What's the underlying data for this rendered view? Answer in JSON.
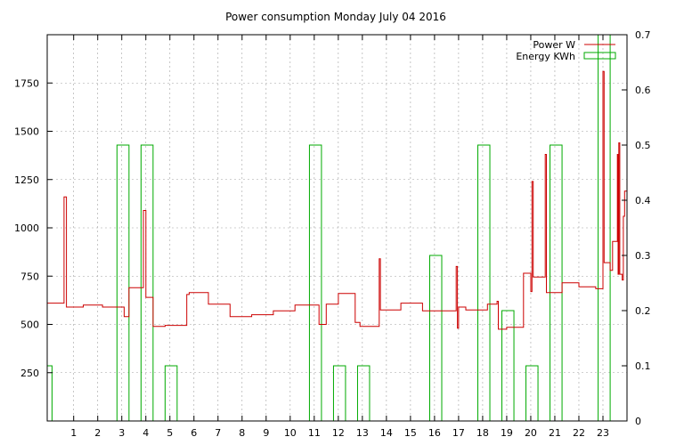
{
  "chart_data": {
    "type": "line",
    "title": "Power consumption Monday July 04 2016",
    "xlabel": "",
    "ylabel": "",
    "xlim": [
      -0.1,
      24.0
    ],
    "ylim": [
      0,
      2000
    ],
    "y2lim": [
      0,
      0.7
    ],
    "x_ticks": [
      "1",
      "2",
      "3",
      "4",
      "5",
      "6",
      "7",
      "8",
      "9",
      "10",
      "11",
      "12",
      "13",
      "14",
      "15",
      "16",
      "17",
      "18",
      "19",
      "20",
      "21",
      "22",
      "23"
    ],
    "y_ticks": [
      250,
      500,
      750,
      1000,
      1250,
      1500,
      1750
    ],
    "y2_ticks": [
      "0",
      "0.1",
      "0.2",
      "0.3",
      "0.4",
      "0.5",
      "0.6",
      "0.7"
    ],
    "grid": true,
    "legend_position": "top-right",
    "series": [
      {
        "name": "Power W",
        "axis": "left",
        "color": "#cc0000",
        "points": [
          [
            -0.1,
            610
          ],
          [
            0.6,
            610
          ],
          [
            0.6,
            1160
          ],
          [
            0.7,
            1160
          ],
          [
            0.7,
            590
          ],
          [
            1.4,
            590
          ],
          [
            1.4,
            600
          ],
          [
            2.2,
            600
          ],
          [
            2.2,
            590
          ],
          [
            3.1,
            590
          ],
          [
            3.1,
            540
          ],
          [
            3.3,
            540
          ],
          [
            3.3,
            690
          ],
          [
            3.9,
            690
          ],
          [
            3.9,
            1090
          ],
          [
            4.0,
            1090
          ],
          [
            4.0,
            640
          ],
          [
            4.3,
            640
          ],
          [
            4.3,
            490
          ],
          [
            4.8,
            490
          ],
          [
            4.8,
            495
          ],
          [
            5.7,
            495
          ],
          [
            5.7,
            655
          ],
          [
            5.8,
            655
          ],
          [
            5.8,
            665
          ],
          [
            6.6,
            665
          ],
          [
            6.6,
            605
          ],
          [
            7.5,
            605
          ],
          [
            7.5,
            540
          ],
          [
            8.4,
            540
          ],
          [
            8.4,
            550
          ],
          [
            9.3,
            550
          ],
          [
            9.3,
            570
          ],
          [
            10.2,
            570
          ],
          [
            10.2,
            600
          ],
          [
            11.2,
            600
          ],
          [
            11.2,
            500
          ],
          [
            11.5,
            500
          ],
          [
            11.5,
            605
          ],
          [
            12.0,
            605
          ],
          [
            12.0,
            660
          ],
          [
            12.7,
            660
          ],
          [
            12.7,
            510
          ],
          [
            12.9,
            510
          ],
          [
            12.9,
            490
          ],
          [
            13.7,
            490
          ],
          [
            13.7,
            840
          ],
          [
            13.75,
            840
          ],
          [
            13.75,
            575
          ],
          [
            14.6,
            575
          ],
          [
            14.6,
            610
          ],
          [
            15.5,
            610
          ],
          [
            15.5,
            570
          ],
          [
            16.9,
            570
          ],
          [
            16.9,
            800
          ],
          [
            16.95,
            800
          ],
          [
            16.95,
            480
          ],
          [
            17.0,
            480
          ],
          [
            17.0,
            590
          ],
          [
            17.3,
            590
          ],
          [
            17.3,
            575
          ],
          [
            18.2,
            575
          ],
          [
            18.2,
            605
          ],
          [
            18.6,
            605
          ],
          [
            18.6,
            620
          ],
          [
            18.65,
            620
          ],
          [
            18.65,
            475
          ],
          [
            19.0,
            475
          ],
          [
            19.0,
            485
          ],
          [
            19.7,
            485
          ],
          [
            19.7,
            765
          ],
          [
            20.0,
            765
          ],
          [
            20.0,
            670
          ],
          [
            20.05,
            670
          ],
          [
            20.05,
            1240
          ],
          [
            20.1,
            1240
          ],
          [
            20.1,
            745
          ],
          [
            20.6,
            745
          ],
          [
            20.6,
            1380
          ],
          [
            20.65,
            1380
          ],
          [
            20.65,
            665
          ],
          [
            21.3,
            665
          ],
          [
            21.3,
            715
          ],
          [
            22.0,
            715
          ],
          [
            22.0,
            695
          ],
          [
            22.7,
            695
          ],
          [
            22.7,
            685
          ],
          [
            23.0,
            685
          ],
          [
            23.0,
            1810
          ],
          [
            23.05,
            1810
          ],
          [
            23.05,
            820
          ],
          [
            23.3,
            820
          ],
          [
            23.3,
            780
          ],
          [
            23.4,
            780
          ],
          [
            23.4,
            930
          ],
          [
            23.6,
            930
          ],
          [
            23.6,
            1380
          ],
          [
            23.63,
            1380
          ],
          [
            23.63,
            760
          ],
          [
            23.66,
            760
          ],
          [
            23.66,
            1440
          ],
          [
            23.7,
            1440
          ],
          [
            23.7,
            760
          ],
          [
            23.8,
            760
          ],
          [
            23.8,
            730
          ],
          [
            23.85,
            730
          ],
          [
            23.85,
            1060
          ],
          [
            23.9,
            1060
          ],
          [
            23.9,
            1190
          ],
          [
            24.0,
            1190
          ]
        ]
      },
      {
        "name": "Energy KWh",
        "axis": "right",
        "color": "#00aa00",
        "bars": [
          [
            -0.1,
            0.1,
            0.1
          ],
          [
            2.8,
            3.3,
            0.5
          ],
          [
            3.8,
            4.3,
            0.5
          ],
          [
            4.8,
            5.3,
            0.1
          ],
          [
            10.8,
            11.3,
            0.5
          ],
          [
            11.8,
            12.3,
            0.1
          ],
          [
            12.8,
            13.3,
            0.1
          ],
          [
            15.8,
            16.3,
            0.3
          ],
          [
            17.8,
            18.3,
            0.5
          ],
          [
            18.8,
            19.3,
            0.2
          ],
          [
            19.8,
            20.3,
            0.1
          ],
          [
            20.8,
            21.3,
            0.5
          ],
          [
            22.8,
            23.3,
            0.7
          ]
        ]
      }
    ]
  }
}
